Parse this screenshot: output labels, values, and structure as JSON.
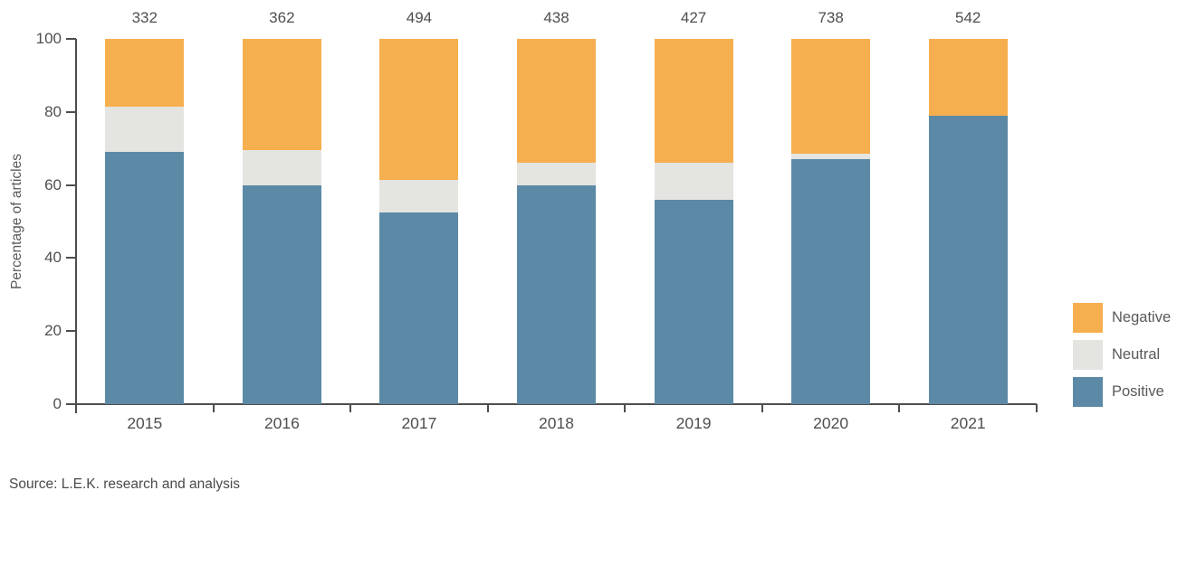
{
  "chart_data": {
    "type": "bar",
    "stacked": true,
    "title": "",
    "ylabel": "Percentage of articles",
    "xlabel": "",
    "ylim": [
      0,
      100
    ],
    "yticks": [
      0,
      20,
      40,
      60,
      80,
      100
    ],
    "grid": false,
    "legend_position": "right",
    "categories": [
      "2015",
      "2016",
      "2017",
      "2018",
      "2019",
      "2020",
      "2021"
    ],
    "bar_totals": [
      332,
      362,
      494,
      438,
      427,
      738,
      542
    ],
    "series": [
      {
        "name": "Positive",
        "color": "#5C8AA6",
        "values": [
          69,
          60,
          52.5,
          60,
          56,
          67,
          79
        ]
      },
      {
        "name": "Neutral",
        "color": "#E4E4E1",
        "values": [
          12.5,
          9.5,
          9,
          6,
          10,
          1.5,
          0
        ]
      },
      {
        "name": "Negative",
        "color": "#F6AF4F",
        "values": [
          18.5,
          30.5,
          38.5,
          34,
          34,
          31.5,
          21
        ]
      }
    ],
    "legend": [
      {
        "label": "Negative",
        "color": "#F6AF4F"
      },
      {
        "label": "Neutral",
        "color": "#E4E4E1"
      },
      {
        "label": "Positive",
        "color": "#5C8AA6"
      }
    ]
  },
  "source": "Source: L.E.K. research and analysis"
}
